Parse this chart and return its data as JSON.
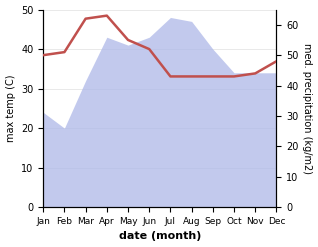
{
  "months": [
    "Jan",
    "Feb",
    "Mar",
    "Apr",
    "May",
    "Jun",
    "Jul",
    "Aug",
    "Sep",
    "Oct",
    "Nov",
    "Dec"
  ],
  "max_temp": [
    24,
    20,
    32,
    43,
    41,
    43,
    48,
    47,
    40,
    34,
    34,
    34
  ],
  "precipitation": [
    50,
    51,
    62,
    63,
    55,
    52,
    43,
    43,
    43,
    43,
    44,
    48
  ],
  "temp_color": "#c0504d",
  "precip_fill_color": "#aeb8e8",
  "temp_ylim": [
    0,
    50
  ],
  "precip_ylim": [
    0,
    65
  ],
  "xlabel": "date (month)",
  "ylabel_left": "max temp (C)",
  "ylabel_right": "med. precipitation (kg/m2)",
  "bg_color": "#ffffff",
  "temp_linewidth": 1.8
}
